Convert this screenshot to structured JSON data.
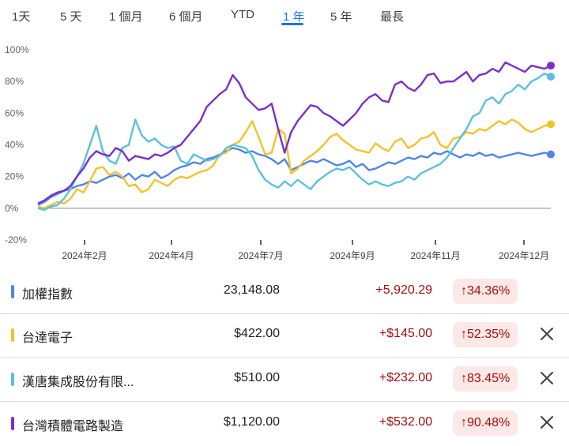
{
  "tabs": [
    {
      "label": "1天"
    },
    {
      "label": "5 天"
    },
    {
      "label": "1 個月"
    },
    {
      "label": "6 個月"
    },
    {
      "label": "YTD"
    },
    {
      "label": "1 年"
    },
    {
      "label": "5 年"
    },
    {
      "label": "最長"
    }
  ],
  "active_tab": "1 年",
  "chart_data": {
    "type": "line",
    "ylim": [
      -20,
      100
    ],
    "yticks": [
      "100%",
      "80%",
      "60%",
      "40%",
      "20%",
      "0%",
      "-20%"
    ],
    "xticks": [
      "2024年2月",
      "2024年4月",
      "2024年7月",
      "2024年9月",
      "2024年11月",
      "2024年12月"
    ],
    "grid": false,
    "series": [
      {
        "name": "加權指數",
        "color": "#4f86e8",
        "values": [
          2,
          4,
          7,
          9,
          11,
          12,
          14,
          15,
          17,
          16,
          18,
          20,
          21,
          19,
          22,
          18,
          21,
          20,
          23,
          19,
          21,
          24,
          26,
          27,
          29,
          28,
          31,
          32,
          34,
          36,
          38,
          37,
          35,
          36,
          34,
          33,
          31,
          28,
          31,
          24,
          26,
          28,
          30,
          29,
          31,
          29,
          27,
          28,
          30,
          26,
          28,
          24,
          25,
          27,
          29,
          28,
          30,
          32,
          31,
          33,
          32,
          35,
          34,
          36,
          34,
          32,
          34,
          33,
          35,
          33,
          34,
          32,
          33,
          34,
          35,
          34,
          33,
          34,
          35,
          34
        ]
      },
      {
        "name": "台達電子",
        "color": "#f4c22b",
        "values": [
          1,
          0,
          2,
          4,
          3,
          6,
          12,
          10,
          17,
          25,
          26,
          21,
          23,
          20,
          14,
          15,
          10,
          12,
          18,
          16,
          14,
          18,
          20,
          19,
          21,
          23,
          24,
          27,
          34,
          35,
          40,
          42,
          48,
          55,
          45,
          34,
          35,
          50,
          47,
          22,
          25,
          30,
          33,
          36,
          40,
          45,
          47,
          43,
          40,
          37,
          36,
          35,
          41,
          38,
          36,
          42,
          44,
          38,
          40,
          44,
          45,
          48,
          40,
          38,
          44,
          45,
          48,
          47,
          50,
          49,
          52,
          55,
          53,
          56,
          54,
          50,
          48,
          50,
          52,
          53
        ]
      },
      {
        "name": "漢唐集成股份有限...",
        "color": "#5bc0de",
        "values": [
          0,
          -1,
          1,
          2,
          6,
          12,
          20,
          28,
          40,
          52,
          36,
          30,
          28,
          38,
          40,
          56,
          46,
          42,
          44,
          40,
          38,
          39,
          30,
          28,
          34,
          32,
          30,
          31,
          33,
          38,
          40,
          39,
          38,
          33,
          24,
          18,
          15,
          13,
          17,
          14,
          18,
          15,
          12,
          17,
          20,
          23,
          25,
          24,
          26,
          22,
          18,
          15,
          17,
          15,
          14,
          16,
          17,
          20,
          18,
          22,
          24,
          26,
          28,
          32,
          38,
          44,
          50,
          58,
          60,
          68,
          70,
          66,
          72,
          74,
          78,
          75,
          80,
          82,
          85,
          83
        ]
      },
      {
        "name": "台灣積體電路製造",
        "color": "#7b2fc9",
        "values": [
          3,
          5,
          8,
          10,
          11,
          14,
          20,
          25,
          32,
          36,
          34,
          33,
          38,
          36,
          30,
          33,
          32,
          31,
          34,
          33,
          35,
          38,
          40,
          45,
          50,
          55,
          64,
          68,
          72,
          75,
          84,
          79,
          70,
          66,
          62,
          63,
          66,
          50,
          35,
          48,
          55,
          60,
          65,
          64,
          60,
          58,
          55,
          52,
          56,
          60,
          66,
          70,
          72,
          68,
          67,
          78,
          80,
          76,
          74,
          78,
          84,
          85,
          79,
          80,
          80,
          83,
          86,
          80,
          84,
          85,
          88,
          86,
          92,
          90,
          88,
          86,
          90,
          89,
          88,
          90
        ]
      }
    ]
  },
  "rows": [
    {
      "name": "加權指數",
      "price": "23,148.08",
      "change": "+5,920.29",
      "pct": "34.36%",
      "color": "#4f86e8",
      "has_close": false
    },
    {
      "name": "台達電子",
      "price": "$422.00",
      "change": "+$145.00",
      "pct": "52.35%",
      "color": "#f4c22b",
      "has_close": true
    },
    {
      "name": "漢唐集成股份有限...",
      "price": "$510.00",
      "change": "+$232.00",
      "pct": "83.45%",
      "color": "#5bc0de",
      "has_close": true
    },
    {
      "name": "台灣積體電路製造",
      "price": "$1,120.00",
      "change": "+$532.00",
      "pct": "90.48%",
      "color": "#7b2fc9",
      "has_close": true
    }
  ],
  "icons": {
    "up_arrow": "arrow-up-icon",
    "close": "close-icon"
  }
}
